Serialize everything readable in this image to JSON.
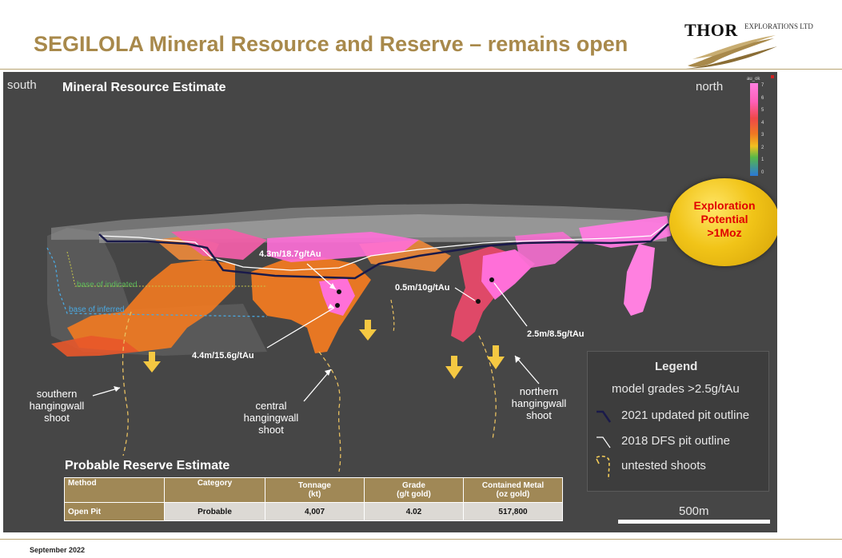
{
  "slide": {
    "title": "SEGILOLA Mineral Resource and Reserve – remains open",
    "date": "September 2022"
  },
  "logo": {
    "name": "THOR",
    "suffix": "EXPLORATIONS LTD"
  },
  "section": {
    "south_label": "south",
    "north_label": "north",
    "heading": "Mineral Resource Estimate",
    "base_indicated": "base of indicated",
    "base_inferred": "base of inferred",
    "annotations": [
      "4.3m/18.7g/tAu",
      "4.4m/15.6g/tAu",
      "0.5m/10g/tAu",
      "2.5m/8.5g/tAu"
    ],
    "shoots": {
      "southern": "southern hangingwall shoot",
      "central": "central hangingwall shoot",
      "northern": "northern hangingwall shoot"
    },
    "colour_scale": {
      "title": "au_ok",
      "ticks": [
        "7",
        "6",
        "5",
        "4",
        "3",
        "2",
        "1",
        "0"
      ]
    }
  },
  "exploration": {
    "line1": "Exploration",
    "line2": "Potential",
    "line3": ">1Moz"
  },
  "legend": {
    "title": "Legend",
    "subtitle": "model grades >2.5g/tAu",
    "items": [
      {
        "label": "2021 updated pit outline",
        "color": "#1a1a4a"
      },
      {
        "label": "2018 DFS pit outline",
        "color": "#ffffff"
      },
      {
        "label": "untested shoots",
        "color": "#f3cc58"
      }
    ]
  },
  "scale_bar": "500m",
  "reserve": {
    "title": "Probable Reserve Estimate",
    "headers": [
      {
        "l1": "Method",
        "l2": ""
      },
      {
        "l1": "Category",
        "l2": ""
      },
      {
        "l1": "Tonnage",
        "l2": "(kt)"
      },
      {
        "l1": "Grade",
        "l2": "(g/t gold)"
      },
      {
        "l1": "Contained Metal",
        "l2": "(oz gold)"
      }
    ],
    "row": [
      "Open Pit",
      "Probable",
      "4,007",
      "4.02",
      "517,800"
    ]
  },
  "colors": {
    "brand_gold": "#a8894b",
    "panel_bg": "#464646",
    "high_grade": "#ff6fd8",
    "mid_grade": "#f07a22"
  }
}
